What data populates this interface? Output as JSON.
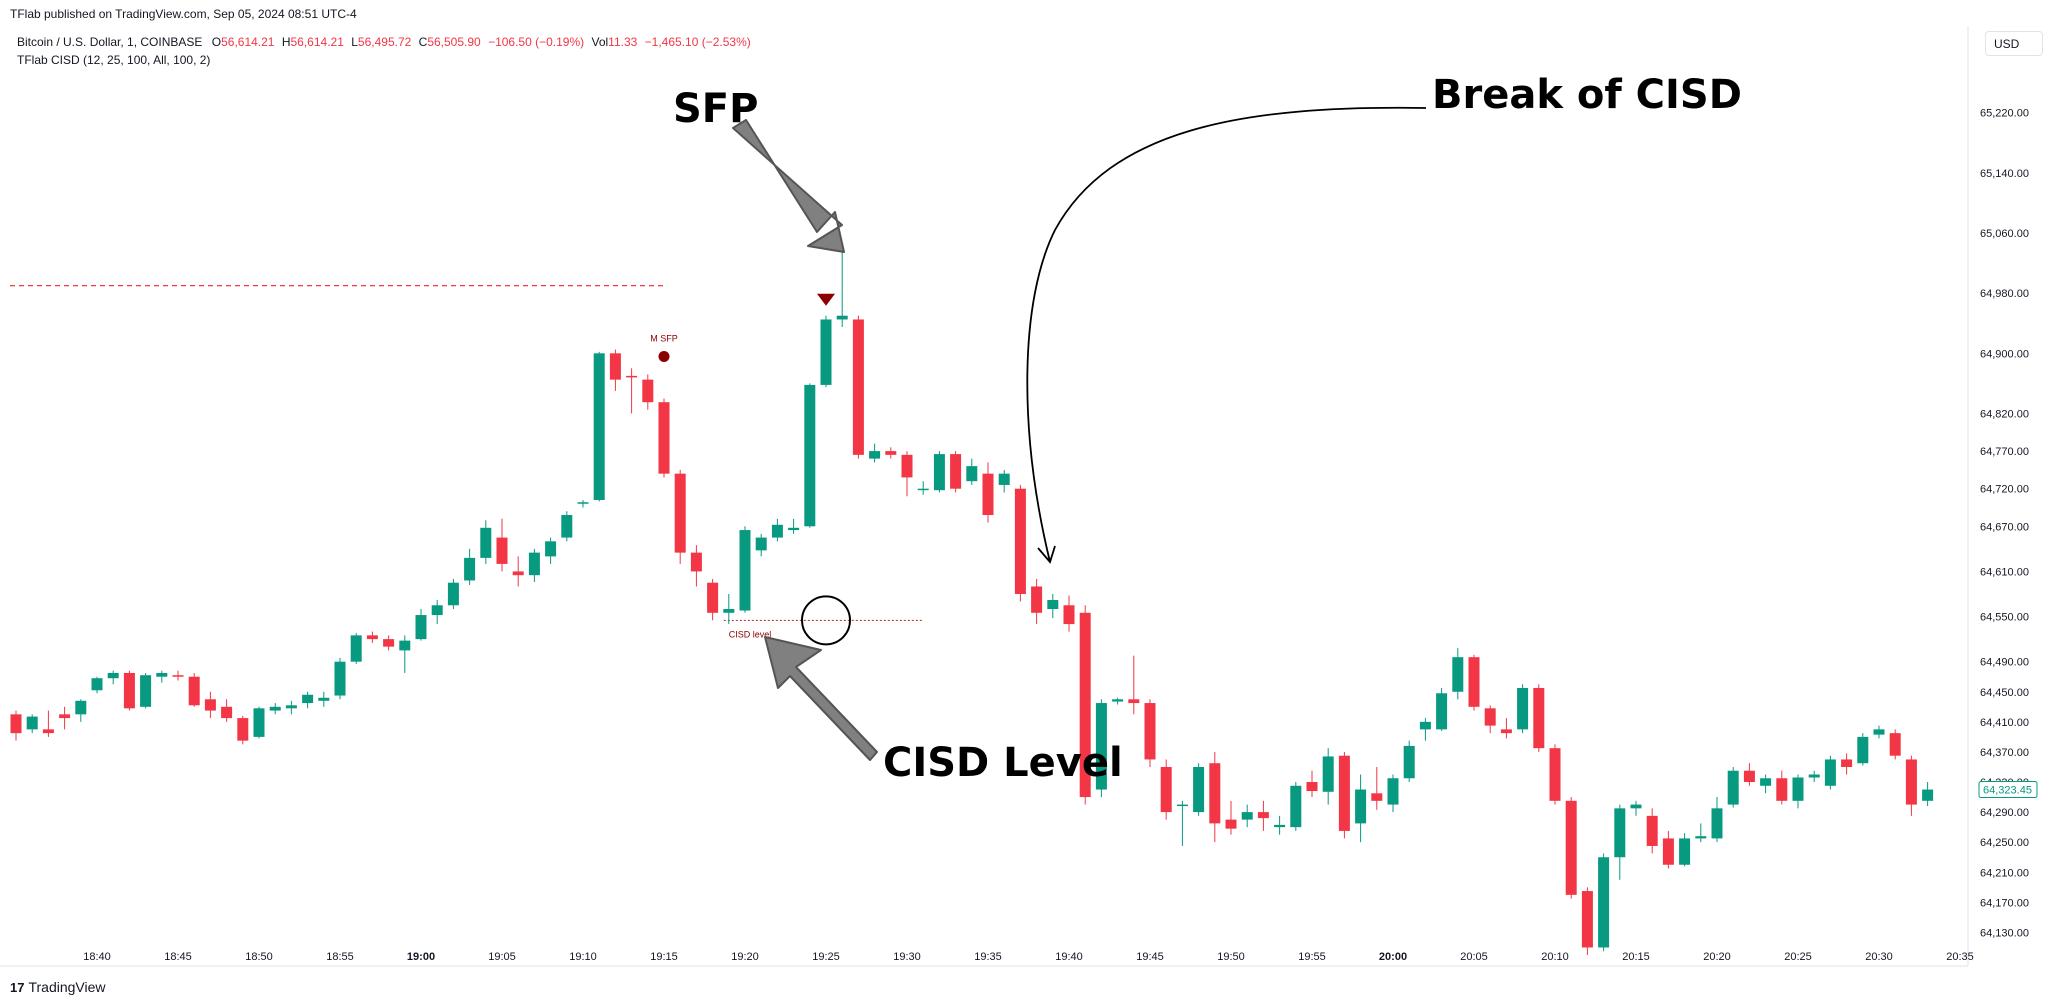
{
  "header": {
    "published": "TFlab published on TradingView.com, Sep 05, 2024 08:51 UTC-4"
  },
  "legend": {
    "symbol": "Bitcoin / U.S. Dollar, 1, COINBASE",
    "o_label": "O",
    "o_value": "56,614.21",
    "h_label": "H",
    "h_value": "56,614.21",
    "l_label": "L",
    "l_value": "56,495.72",
    "c_label": "C",
    "c_value": "56,505.90",
    "change": "−106.50 (−0.19%)",
    "vol_label": "Vol",
    "vol_value": "11.33",
    "vol_change": "−1,465.10 (−2.53%)",
    "indicator": "TFlab CISD (12, 25, 100, All, 100, 2)"
  },
  "currency_button": "USD",
  "footer": {
    "brand": "TradingView"
  },
  "annotations": {
    "sfp": "SFP",
    "break": "Break of CISD",
    "cisd_level": "CISD Level",
    "m_sfp": "M SFP",
    "cisd_small": "CISD level"
  },
  "colors": {
    "up": "#089981",
    "down": "#f23645",
    "marker": "#8b0000",
    "price_tag": "#089981"
  },
  "chart_data": {
    "type": "candlestick",
    "ylim": [
      64100,
      65290
    ],
    "y_ticks": [
      65220,
      65140,
      65060,
      64980,
      64900,
      64820,
      64770,
      64720,
      64670,
      64610,
      64550,
      64490,
      64450,
      64410,
      64370,
      64330,
      64290,
      64250,
      64210,
      64170,
      64130
    ],
    "x_ticks": [
      {
        "label": "18:40",
        "i": 5
      },
      {
        "label": "18:45",
        "i": 10
      },
      {
        "label": "18:50",
        "i": 15
      },
      {
        "label": "18:55",
        "i": 20
      },
      {
        "label": "19:00",
        "i": 25,
        "bold": true
      },
      {
        "label": "19:05",
        "i": 30
      },
      {
        "label": "19:10",
        "i": 35
      },
      {
        "label": "19:15",
        "i": 40
      },
      {
        "label": "19:20",
        "i": 45
      },
      {
        "label": "19:25",
        "i": 50
      },
      {
        "label": "19:30",
        "i": 55
      },
      {
        "label": "19:35",
        "i": 60
      },
      {
        "label": "19:40",
        "i": 65
      },
      {
        "label": "19:45",
        "i": 70
      },
      {
        "label": "19:50",
        "i": 75
      },
      {
        "label": "19:55",
        "i": 80
      },
      {
        "label": "20:00",
        "i": 85,
        "bold": true
      },
      {
        "label": "20:05",
        "i": 90
      },
      {
        "label": "20:10",
        "i": 95
      },
      {
        "label": "20:15",
        "i": 100
      },
      {
        "label": "20:20",
        "i": 105
      },
      {
        "label": "20:25",
        "i": 110
      },
      {
        "label": "20:30",
        "i": 115
      },
      {
        "label": "20:35",
        "i": 120
      }
    ],
    "last_price": "64,323.45",
    "last_price_hidden": "64,330.00",
    "sfp_level": 64990,
    "cisd_level": 64545,
    "candles": [
      [
        64420,
        64425,
        64385,
        64395
      ],
      [
        64400,
        64420,
        64395,
        64417
      ],
      [
        64400,
        64425,
        64390,
        64395
      ],
      [
        64420,
        64430,
        64400,
        64415
      ],
      [
        64420,
        64440,
        64410,
        64438
      ],
      [
        64452,
        64470,
        64448,
        64468
      ],
      [
        64468,
        64478,
        64460,
        64475
      ],
      [
        64475,
        64478,
        64425,
        64428
      ],
      [
        64430,
        64475,
        64428,
        64472
      ],
      [
        64470,
        64478,
        64462,
        64475
      ],
      [
        64472,
        64478,
        64465,
        64470
      ],
      [
        64470,
        64475,
        64430,
        64432
      ],
      [
        64440,
        64450,
        64415,
        64425
      ],
      [
        64430,
        64440,
        64410,
        64415
      ],
      [
        64415,
        64418,
        64380,
        64385
      ],
      [
        64390,
        64430,
        64388,
        64428
      ],
      [
        64425,
        64435,
        64420,
        64430
      ],
      [
        64428,
        64438,
        64420,
        64432
      ],
      [
        64435,
        64450,
        64428,
        64446
      ],
      [
        64438,
        64450,
        64430,
        64442
      ],
      [
        64445,
        64495,
        64440,
        64490
      ],
      [
        64490,
        64528,
        64487,
        64525
      ],
      [
        64525,
        64530,
        64515,
        64520
      ],
      [
        64520,
        64525,
        64505,
        64510
      ],
      [
        64505,
        64525,
        64475,
        64518
      ],
      [
        64520,
        64560,
        64518,
        64552
      ],
      [
        64552,
        64572,
        64540,
        64565
      ],
      [
        64565,
        64600,
        64560,
        64595
      ],
      [
        64598,
        64640,
        64592,
        64628
      ],
      [
        64628,
        64678,
        64620,
        64668
      ],
      [
        64655,
        64680,
        64610,
        64620
      ],
      [
        64610,
        64630,
        64590,
        64605
      ],
      [
        64605,
        64640,
        64596,
        64635
      ],
      [
        64630,
        64655,
        64620,
        64650
      ],
      [
        64655,
        64690,
        64650,
        64685
      ],
      [
        64700,
        64705,
        64695,
        64702
      ],
      [
        64705,
        64902,
        64703,
        64900
      ],
      [
        64900,
        64905,
        64850,
        64865
      ],
      [
        64870,
        64880,
        64820,
        64868
      ],
      [
        64865,
        64872,
        64825,
        64835
      ],
      [
        64835,
        64840,
        64735,
        64740
      ],
      [
        64740,
        64745,
        64620,
        64635
      ],
      [
        64635,
        64645,
        64590,
        64610
      ],
      [
        64595,
        64600,
        64545,
        64555
      ],
      [
        64555,
        64580,
        64540,
        64560
      ],
      [
        64558,
        64670,
        64555,
        64665
      ],
      [
        64638,
        64660,
        64630,
        64655
      ],
      [
        64655,
        64680,
        64650,
        64672
      ],
      [
        64665,
        64680,
        64660,
        64668
      ],
      [
        64670,
        64860,
        64668,
        64858
      ],
      [
        64858,
        64950,
        64855,
        64945
      ],
      [
        64945,
        65040,
        64935,
        64950
      ],
      [
        64945,
        64950,
        64760,
        64765
      ],
      [
        64760,
        64780,
        64755,
        64770
      ],
      [
        64770,
        64775,
        64760,
        64765
      ],
      [
        64765,
        64770,
        64710,
        64735
      ],
      [
        64718,
        64730,
        64712,
        64720
      ],
      [
        64718,
        64770,
        64715,
        64766
      ],
      [
        64766,
        64770,
        64715,
        64720
      ],
      [
        64730,
        64760,
        64725,
        64750
      ],
      [
        64740,
        64755,
        64675,
        64685
      ],
      [
        64725,
        64745,
        64715,
        64740
      ],
      [
        64720,
        64725,
        64570,
        64580
      ],
      [
        64590,
        64600,
        64540,
        64555
      ],
      [
        64560,
        64580,
        64548,
        64572
      ],
      [
        64565,
        64578,
        64530,
        64540
      ],
      [
        64555,
        64565,
        64300,
        64310
      ],
      [
        64320,
        64440,
        64310,
        64435
      ],
      [
        64437,
        64442,
        64433,
        64440
      ],
      [
        64440,
        64498,
        64420,
        64435
      ],
      [
        64435,
        64440,
        64350,
        64360
      ],
      [
        64350,
        64360,
        64280,
        64290
      ],
      [
        64298,
        64305,
        64245,
        64300
      ],
      [
        64290,
        64355,
        64285,
        64350
      ],
      [
        64355,
        64370,
        64250,
        64275
      ],
      [
        64280,
        64305,
        64260,
        64268
      ],
      [
        64280,
        64300,
        64270,
        64290
      ],
      [
        64290,
        64305,
        64265,
        64282
      ],
      [
        64270,
        64285,
        64260,
        64273
      ],
      [
        64270,
        64330,
        64265,
        64325
      ],
      [
        64330,
        64345,
        64310,
        64318
      ],
      [
        64317,
        64375,
        64300,
        64364
      ],
      [
        64365,
        64370,
        64255,
        64265
      ],
      [
        64275,
        64340,
        64250,
        64320
      ],
      [
        64315,
        64350,
        64293,
        64305
      ],
      [
        64300,
        64340,
        64290,
        64335
      ],
      [
        64335,
        64385,
        64330,
        64378
      ],
      [
        64400,
        64415,
        64385,
        64410
      ],
      [
        64400,
        64455,
        64398,
        64448
      ],
      [
        64450,
        64508,
        64440,
        64496
      ],
      [
        64496,
        64499,
        64425,
        64430
      ],
      [
        64428,
        64432,
        64395,
        64405
      ],
      [
        64400,
        64415,
        64388,
        64395
      ],
      [
        64400,
        64460,
        64395,
        64455
      ],
      [
        64455,
        64460,
        64370,
        64375
      ],
      [
        64375,
        64380,
        64300,
        64305
      ],
      [
        64305,
        64310,
        64175,
        64180
      ],
      [
        64185,
        64190,
        64100,
        64110
      ],
      [
        64110,
        64235,
        64105,
        64230
      ],
      [
        64230,
        64300,
        64200,
        64295
      ],
      [
        64295,
        64305,
        64285,
        64300
      ],
      [
        64285,
        64295,
        64235,
        64245
      ],
      [
        64255,
        64265,
        64215,
        64220
      ],
      [
        64220,
        64262,
        64218,
        64255
      ],
      [
        64255,
        64275,
        64250,
        64258
      ],
      [
        64255,
        64310,
        64250,
        64295
      ],
      [
        64300,
        64350,
        64296,
        64345
      ],
      [
        64345,
        64355,
        64325,
        64330
      ],
      [
        64325,
        64340,
        64315,
        64335
      ],
      [
        64335,
        64345,
        64300,
        64305
      ],
      [
        64305,
        64340,
        64295,
        64336
      ],
      [
        64336,
        64345,
        64330,
        64340
      ],
      [
        64325,
        64365,
        64320,
        64360
      ],
      [
        64360,
        64368,
        64340,
        64350
      ],
      [
        64355,
        64395,
        64352,
        64390
      ],
      [
        64393,
        64405,
        64388,
        64400
      ],
      [
        64395,
        64400,
        64360,
        64365
      ],
      [
        64360,
        64365,
        64285,
        64300
      ],
      [
        64305,
        64330,
        64298,
        64320
      ]
    ]
  }
}
